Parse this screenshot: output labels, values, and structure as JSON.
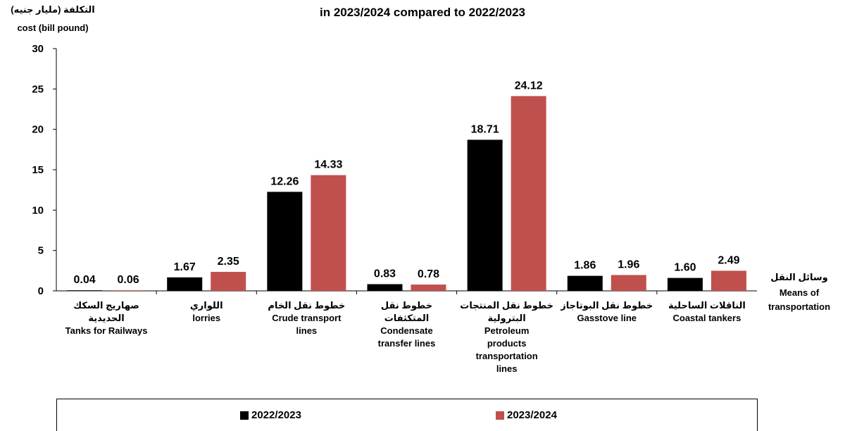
{
  "chart_data": {
    "type": "bar",
    "title_lines": [
      "in 2023/2024 compared to 2022/2023"
    ],
    "ylabel_lines": [
      "التكلفة  (مليار جنيه)",
      "cost (bill pound)"
    ],
    "xlabel_lines": [
      "وسائل النقل",
      "Means of",
      "transportation"
    ],
    "ylim": [
      0,
      30
    ],
    "yticks": [
      0,
      5,
      10,
      15,
      20,
      25,
      30
    ],
    "grid": false,
    "legend_position": "bottom",
    "categories": [
      {
        "ar": "صهاريج السكك الحديدية",
        "en": [
          "Tanks for Railways"
        ]
      },
      {
        "ar": "اللواري",
        "en": [
          "lorries"
        ]
      },
      {
        "ar": "خطوط نقل الخام",
        "en": [
          "Crude transport",
          "lines"
        ]
      },
      {
        "ar": "خطوط نقل المتكثفات",
        "en": [
          "Condensate",
          "transfer lines"
        ]
      },
      {
        "ar": "خطوط نقل المنتجات",
        "ar2": "البترولية",
        "en": [
          "Petroleum",
          "products",
          "transportation",
          "lines"
        ]
      },
      {
        "ar": "خطوط نقل البوتاجاز",
        "en": [
          "Gasstove line"
        ]
      },
      {
        "ar": "الناقلات الساحلية",
        "en": [
          "Coastal tankers"
        ]
      }
    ],
    "series": [
      {
        "name": "2022/2023",
        "color": "#000000",
        "values": [
          0.04,
          1.67,
          12.26,
          0.83,
          18.71,
          1.86,
          1.6
        ],
        "labels": [
          "0.04",
          "1.67",
          "12.26",
          "0.83",
          "18.71",
          "1.86",
          "1.60"
        ]
      },
      {
        "name": "2023/2024",
        "color": "#c0504d",
        "values": [
          0.06,
          2.35,
          14.33,
          0.78,
          24.12,
          1.96,
          2.49
        ],
        "labels": [
          "0.06",
          "2.35",
          "14.33",
          "0.78",
          "24.12",
          "1.96",
          "2.49"
        ]
      }
    ]
  }
}
